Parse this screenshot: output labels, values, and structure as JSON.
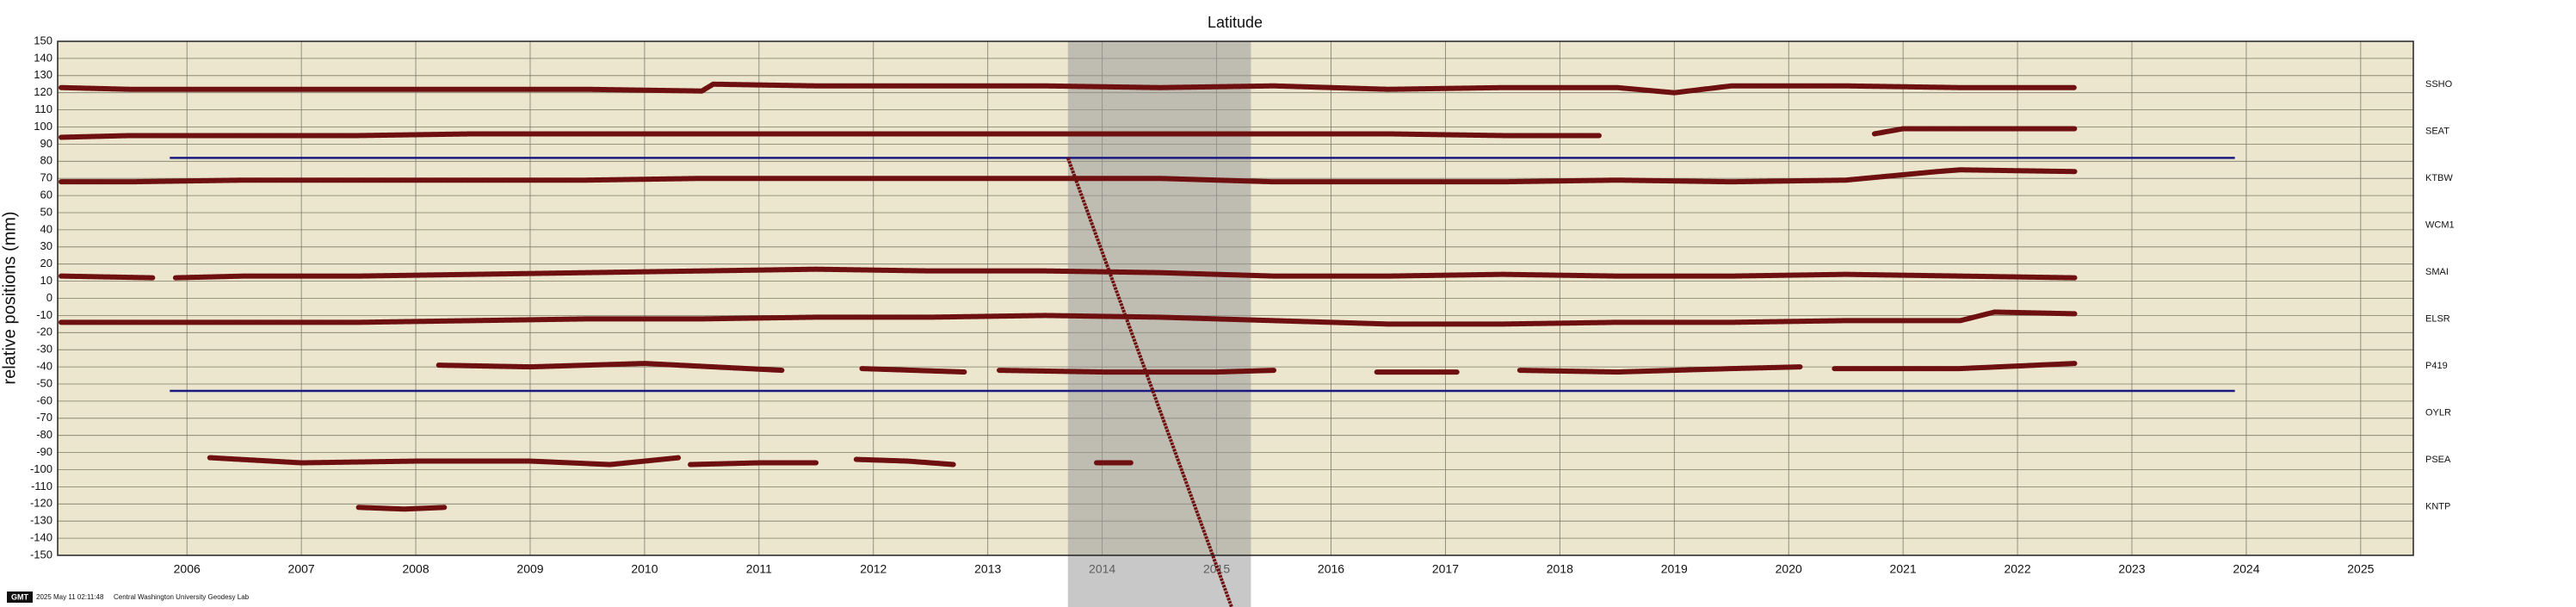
{
  "chart_data": {
    "type": "line",
    "title": "Latitude",
    "y_label": "relative positions (mm)",
    "xlim": [
      2005.37,
      2025.96
    ],
    "ylim": [
      -150,
      150
    ],
    "yticks": [
      -150,
      -140,
      -130,
      -120,
      -110,
      -100,
      -90,
      -80,
      -70,
      -60,
      -50,
      -40,
      -30,
      -20,
      -10,
      0,
      10,
      20,
      30,
      40,
      50,
      60,
      70,
      80,
      90,
      100,
      110,
      120,
      130,
      140,
      150
    ],
    "xticks": [
      {
        "value": 2006.5,
        "label": "2006"
      },
      {
        "value": 2007.5,
        "label": "2007"
      },
      {
        "value": 2008.5,
        "label": "2008"
      },
      {
        "value": 2009.5,
        "label": "2009"
      },
      {
        "value": 2010.5,
        "label": "2010"
      },
      {
        "value": 2011.5,
        "label": "2011"
      },
      {
        "value": 2012.5,
        "label": "2012"
      },
      {
        "value": 2013.5,
        "label": "2013"
      },
      {
        "value": 2014.5,
        "label": "2014"
      },
      {
        "value": 2015.5,
        "label": "2015"
      },
      {
        "value": 2016.5,
        "label": "2016"
      },
      {
        "value": 2017.5,
        "label": "2017"
      },
      {
        "value": 2018.5,
        "label": "2018"
      },
      {
        "value": 2019.5,
        "label": "2019"
      },
      {
        "value": 2020.5,
        "label": "2020"
      },
      {
        "value": 2021.5,
        "label": "2021"
      },
      {
        "value": 2022.5,
        "label": "2022"
      },
      {
        "value": 2023.5,
        "label": "2023"
      },
      {
        "value": 2024.5,
        "label": "2024"
      },
      {
        "value": 2025.5,
        "label": "2025"
      }
    ],
    "grid": true,
    "color": "#6e1010",
    "series": [
      {
        "name": "SSHO",
        "x": [
          2005.4,
          2006,
          2007,
          2008,
          2009,
          2010,
          2011,
          2011.1,
          2012,
          2013,
          2014,
          2015,
          2016,
          2017,
          2018,
          2019,
          2019.5,
          2020,
          2021,
          2022,
          2023
        ],
        "values": [
          123,
          122,
          122,
          122,
          122,
          122,
          121,
          125,
          124,
          124,
          124,
          123,
          124,
          122,
          123,
          123,
          120,
          124,
          124,
          123,
          123
        ]
      },
      {
        "name": "SEAT",
        "x": [
          2005.4,
          2006,
          2007,
          2008,
          2009,
          2010,
          2011,
          2012,
          2013,
          2014,
          2015,
          2016,
          2017,
          2018,
          2018.85,
          2020,
          2021.25,
          2021.5,
          2022,
          2023
        ],
        "values": [
          94,
          95,
          95,
          95,
          96,
          96,
          96,
          96,
          96,
          96,
          96,
          96,
          96,
          95,
          95,
          null,
          96,
          99,
          99,
          99
        ]
      },
      {
        "name": "KTBW",
        "x": [
          2005.4,
          2006,
          2007,
          2008,
          2009,
          2010,
          2011,
          2012,
          2013,
          2014,
          2015,
          2016,
          2017,
          2018,
          2019,
          2020,
          2021,
          2021.8,
          2022,
          2023
        ],
        "values": [
          68,
          68,
          69,
          69,
          69,
          69,
          70,
          70,
          70,
          70,
          70,
          68,
          68,
          68,
          69,
          68,
          69,
          74,
          75,
          74
        ]
      },
      {
        "name": "WCM1",
        "x": [],
        "values": []
      },
      {
        "name": "SMAI",
        "x": [
          2005.4,
          2006.2,
          2006.3,
          2006.4,
          2007,
          2008,
          2009,
          2010,
          2011,
          2012,
          2013,
          2014,
          2015,
          2016,
          2017,
          2018,
          2019,
          2020,
          2021,
          2022,
          2023
        ],
        "values": [
          13,
          12,
          null,
          12,
          13,
          13,
          14,
          15,
          16,
          17,
          16,
          16,
          15,
          13,
          13,
          14,
          13,
          13,
          14,
          13,
          12
        ]
      },
      {
        "name": "ELSR",
        "x": [
          2005.4,
          2006,
          2007,
          2008,
          2009,
          2010,
          2011,
          2012,
          2013,
          2014,
          2015,
          2016,
          2017,
          2018,
          2019,
          2020,
          2021,
          2022,
          2022.3,
          2023
        ],
        "values": [
          -14,
          -14,
          -14,
          -14,
          -13,
          -12,
          -12,
          -11,
          -11,
          -10,
          -11,
          -13,
          -15,
          -15,
          -14,
          -14,
          -13,
          -13,
          -8,
          -9
        ]
      },
      {
        "name": "P419",
        "x": [
          2008.7,
          2009.5,
          2010.5,
          2011.7,
          2012,
          2012.4,
          2013.3,
          2013.45,
          2013.6,
          2014.5,
          2015.5,
          2016,
          2016.5,
          2016.9,
          2017.6,
          2017.9,
          2018.15,
          2019,
          2020,
          2020.6,
          2020.75,
          2020.9,
          2022,
          2023
        ],
        "values": [
          -39,
          -40,
          -38,
          -42,
          null,
          -41,
          -43,
          null,
          -42,
          -43,
          -43,
          -42,
          null,
          -43,
          -43,
          null,
          -42,
          -43,
          -41,
          -40,
          null,
          -41,
          -41,
          -38
        ]
      },
      {
        "name": "OYLR",
        "x": [],
        "values": []
      },
      {
        "name": "PSEA",
        "x": [
          2006.7,
          2007.5,
          2008.5,
          2009.5,
          2010.2,
          2010.8,
          2010.85,
          2010.9,
          2011.5,
          2012,
          2012.2,
          2012.35,
          2012.8,
          2013.2,
          2013.8,
          2014.45,
          2014.75
        ],
        "values": [
          -93,
          -96,
          -95,
          -95,
          -97,
          -93,
          null,
          -97,
          -96,
          -96,
          null,
          -94,
          -95,
          -97,
          null,
          -96,
          -96
        ]
      },
      {
        "name": "KNTP",
        "x": [
          2008.0,
          2008.4,
          2008.75
        ],
        "values": [
          -122,
          -123,
          -122
        ]
      }
    ],
    "hlines": [
      {
        "value": 82,
        "x": [
          2006.35,
          2024.4
        ]
      },
      {
        "value": -54,
        "x": [
          2006.35,
          2024.4
        ]
      }
    ],
    "hline_color": "#1a1a80",
    "band": [
      2014.2,
      2015.8
    ],
    "trend": {
      "x": [
        2014.2,
        2015.63
      ],
      "values": [
        82,
        -180
      ]
    },
    "footer": {
      "logo": "GMT",
      "timestamp": "2025 May 11 02:11:48",
      "credit": "Central Washington University Geodesy Lab"
    }
  }
}
